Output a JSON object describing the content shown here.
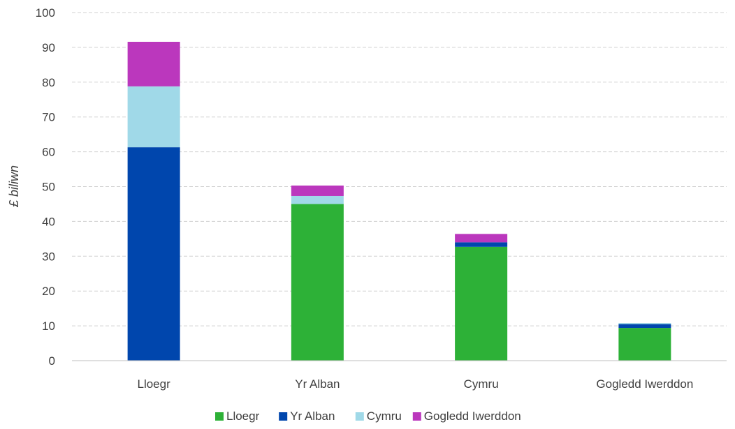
{
  "chart_data": {
    "type": "bar",
    "stacked": true,
    "title": "",
    "xlabel": "",
    "ylabel": "£ biliwn",
    "ylim": [
      0,
      100
    ],
    "yticks": [
      "0",
      "10",
      "20",
      "30",
      "40",
      "50",
      "60",
      "70",
      "80",
      "90",
      "100"
    ],
    "grid": true,
    "legend_position": "bottom",
    "categories": [
      "Lloegr",
      "Yr Alban",
      "Cymru",
      "Gogledd Iwerddon"
    ],
    "series": [
      {
        "name": "Lloegr",
        "color": "#2db137",
        "values": [
          0,
          45,
          32.7,
          9.4
        ]
      },
      {
        "name": "Yr Alban",
        "color": "#0046ad",
        "values": [
          61.3,
          0,
          1.3,
          1.1
        ]
      },
      {
        "name": "Cymru",
        "color": "#a0d9e8",
        "values": [
          17.5,
          2.3,
          0,
          0.3
        ]
      },
      {
        "name": "Gogledd Iwerddon",
        "color": "#bb37bd",
        "values": [
          12.8,
          3.0,
          2.4,
          0
        ]
      }
    ]
  }
}
